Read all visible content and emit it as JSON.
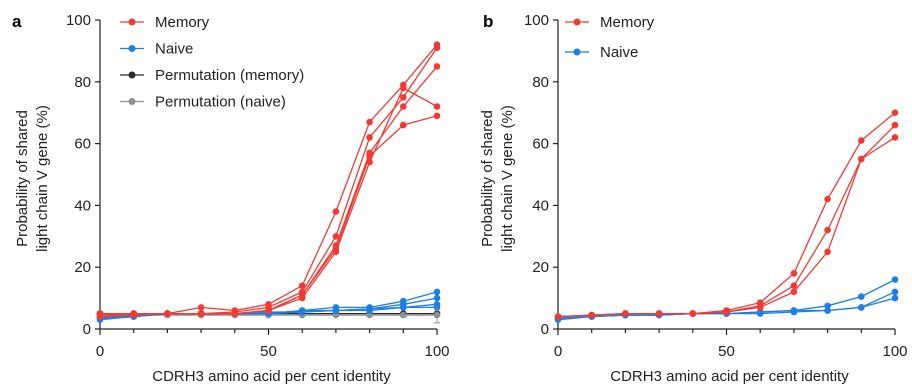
{
  "colors": {
    "memory": "#f03a33",
    "naive": "#1b7fe6",
    "perm_memory": "#2b2b2b",
    "perm_naive": "#909090"
  },
  "chart_data": [
    {
      "panel": "a",
      "type": "line",
      "xlabel": "CDRH3 amino acid per cent identity",
      "ylabel": [
        "Probability of shared",
        "light chain V gene (%)"
      ],
      "xlim": [
        0,
        100
      ],
      "ylim": [
        0,
        100
      ],
      "xticks": [
        "0",
        "50",
        "100"
      ],
      "yticks": [
        "0",
        "20",
        "40",
        "60",
        "80",
        "100"
      ],
      "grid": false,
      "legend_position": "top-left",
      "x": [
        0,
        10,
        20,
        30,
        40,
        50,
        60,
        70,
        80,
        90,
        100
      ],
      "legend": [
        {
          "label": "Memory",
          "group": "memory"
        },
        {
          "label": "Naive",
          "group": "naive"
        },
        {
          "label": "Permutation (memory)",
          "group": "perm_memory"
        },
        {
          "label": "Permutation (naive)",
          "group": "perm_naive"
        }
      ],
      "series": [
        {
          "group": "perm_memory",
          "values": [
            5,
            5,
            5,
            5,
            5,
            5,
            5,
            5,
            5,
            5,
            5
          ]
        },
        {
          "group": "perm_naive",
          "values": [
            4.5,
            4.5,
            4.5,
            4.5,
            4.5,
            4.5,
            4.5,
            4.5,
            4.5,
            4.5,
            4.5
          ]
        },
        {
          "group": "naive",
          "values": [
            3,
            4,
            5,
            5,
            5,
            5,
            6,
            7,
            7,
            9,
            12
          ]
        },
        {
          "group": "naive",
          "values": [
            3.5,
            4,
            5,
            5,
            5,
            5,
            6,
            6,
            6.5,
            8,
            10
          ]
        },
        {
          "group": "naive",
          "values": [
            4,
            4,
            5,
            5,
            5,
            5.5,
            5.5,
            6,
            6.5,
            7,
            8
          ]
        },
        {
          "group": "naive",
          "values": [
            3.5,
            4.5,
            5,
            5,
            5,
            5,
            5.5,
            6,
            6,
            7,
            7
          ]
        },
        {
          "group": "memory",
          "values": [
            5,
            5,
            5,
            7,
            6,
            8,
            14,
            38,
            67,
            79,
            92
          ]
        },
        {
          "group": "memory",
          "values": [
            4.5,
            5,
            5,
            5,
            5.5,
            7,
            12,
            30,
            62,
            75,
            91
          ]
        },
        {
          "group": "memory",
          "values": [
            4,
            4.5,
            5,
            5,
            5,
            6,
            11,
            27,
            57,
            72,
            85
          ]
        },
        {
          "group": "memory",
          "values": [
            4.5,
            5,
            5,
            5,
            5,
            6,
            10,
            25,
            54,
            78,
            72
          ]
        },
        {
          "group": "memory",
          "values": [
            5,
            5,
            5,
            5,
            5,
            6,
            11,
            26,
            56,
            66,
            69
          ]
        }
      ]
    },
    {
      "panel": "b",
      "type": "line",
      "xlabel": "CDRH3 amino acid per cent identity",
      "ylabel": [
        "Probability of shared",
        "light chain V gene (%)"
      ],
      "xlim": [
        0,
        100
      ],
      "ylim": [
        0,
        100
      ],
      "xticks": [
        "0",
        "50",
        "100"
      ],
      "yticks": [
        "0",
        "20",
        "40",
        "60",
        "80",
        "100"
      ],
      "grid": false,
      "legend_position": "top-left",
      "x": [
        0,
        10,
        20,
        30,
        40,
        50,
        60,
        70,
        80,
        90,
        100
      ],
      "legend": [
        {
          "label": "Memory",
          "group": "memory"
        },
        {
          "label": "Naive",
          "group": "naive"
        }
      ],
      "series": [
        {
          "group": "naive",
          "values": [
            3,
            4,
            4.5,
            4.5,
            5,
            5,
            5.5,
            6,
            7.5,
            10.5,
            16
          ]
        },
        {
          "group": "naive",
          "values": [
            3.5,
            4,
            4.5,
            4.5,
            5,
            5,
            5.5,
            6,
            6,
            7,
            12
          ]
        },
        {
          "group": "naive",
          "values": [
            3.5,
            4,
            4.5,
            4.5,
            5,
            5,
            5,
            5.5,
            6,
            7,
            10
          ]
        },
        {
          "group": "memory",
          "values": [
            4,
            4.5,
            5,
            5,
            5,
            6,
            8.5,
            18,
            42,
            61,
            70
          ]
        },
        {
          "group": "memory",
          "values": [
            4,
            4.5,
            5,
            5,
            5,
            5.5,
            7.5,
            14,
            32,
            55,
            66
          ]
        },
        {
          "group": "memory",
          "values": [
            4,
            4.5,
            5,
            5,
            5,
            5.5,
            7,
            12,
            25,
            55,
            62
          ]
        }
      ]
    }
  ]
}
